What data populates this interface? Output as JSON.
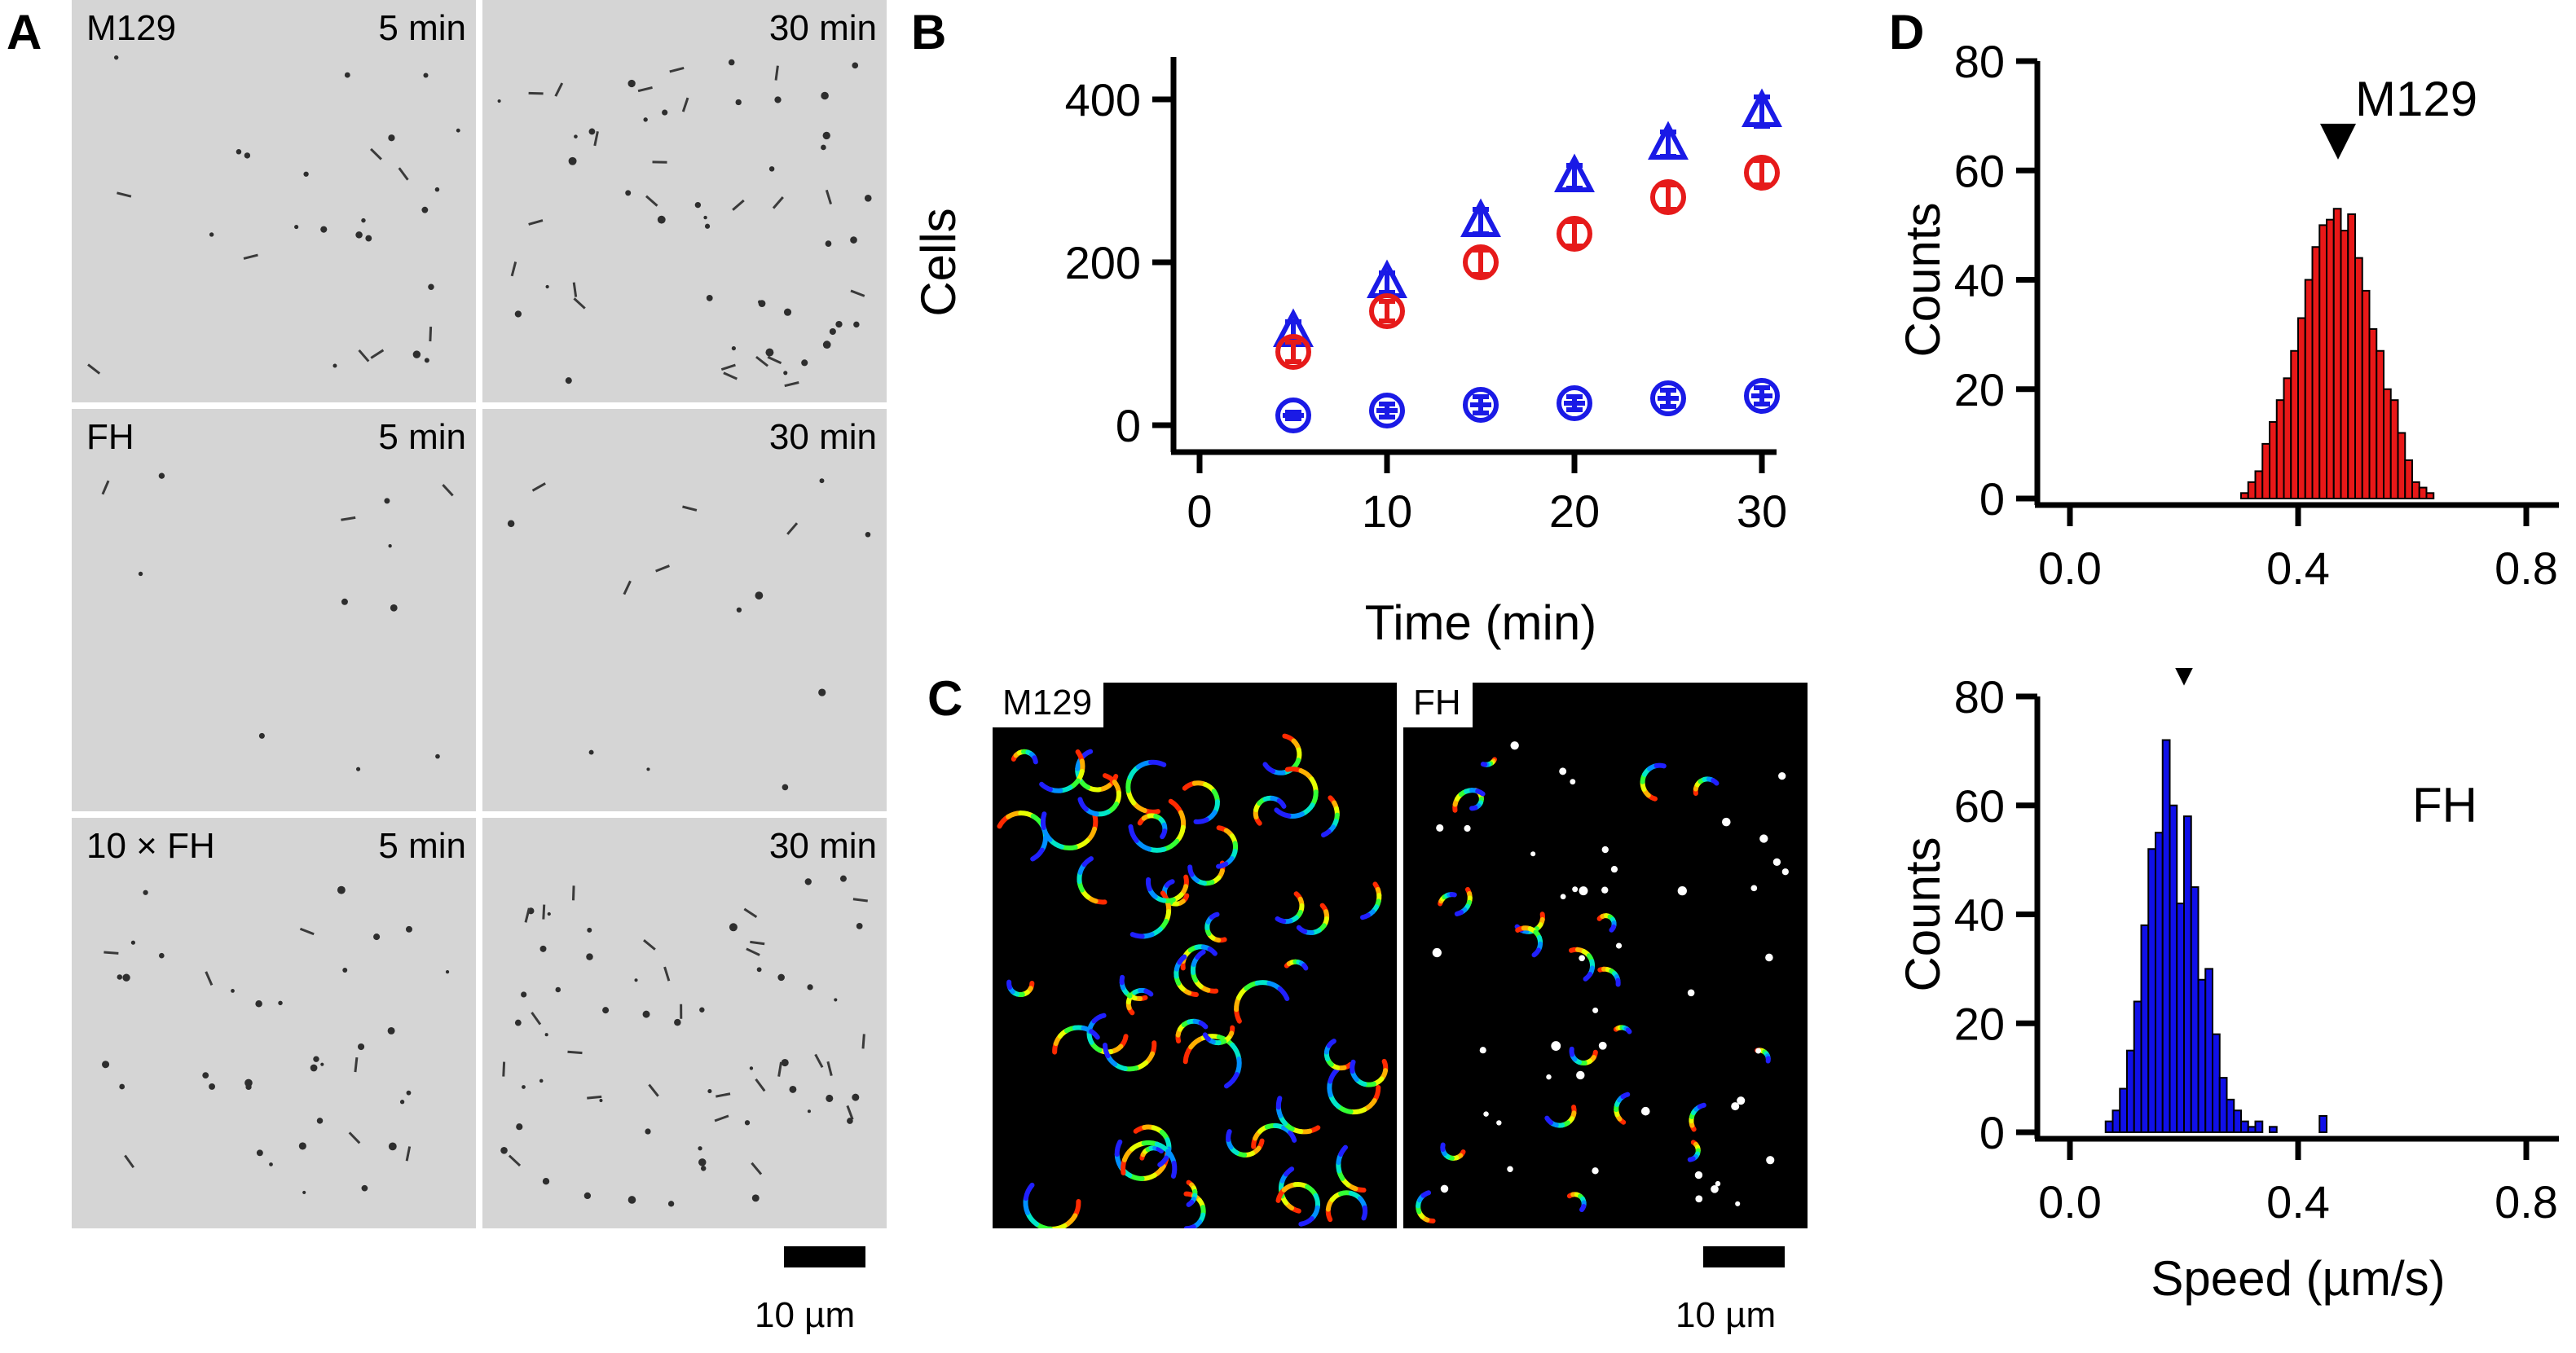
{
  "panel_labels": {
    "a": "A",
    "b": "B",
    "c": "C",
    "d": "D"
  },
  "panel_a": {
    "rows": [
      {
        "label": "M129",
        "early": "5 min",
        "late": "30 min"
      },
      {
        "label": "FH",
        "early": "5 min",
        "late": "30 min"
      },
      {
        "label": "10 × FH",
        "early": "5 min",
        "late": "30 min"
      }
    ],
    "scale_bar": "10 µm"
  },
  "panel_c": {
    "left_label": "M129",
    "right_label": "FH",
    "scale_bar": "10 µm"
  },
  "chart_data": [
    {
      "type": "scatter",
      "xlabel": "Time (min)",
      "ylabel": "Cells",
      "xlim": [
        0,
        30
      ],
      "ylim": [
        0,
        400
      ],
      "xticks": [
        0,
        10,
        20,
        30
      ],
      "yticks": [
        0,
        200,
        400
      ],
      "legend": "none",
      "series": [
        {
          "marker": "triangle",
          "color": "#1a1ae6",
          "x": [
            5,
            10,
            15,
            20,
            25,
            30
          ],
          "y": [
            115,
            175,
            250,
            305,
            345,
            385
          ],
          "err": [
            12,
            12,
            15,
            14,
            15,
            18
          ]
        },
        {
          "marker": "circle",
          "color": "#e61a1a",
          "x": [
            5,
            10,
            15,
            20,
            25,
            30
          ],
          "y": [
            90,
            140,
            200,
            235,
            280,
            310
          ],
          "err": [
            12,
            12,
            15,
            15,
            15,
            15
          ]
        },
        {
          "marker": "circle-bar",
          "color": "#1a1ae6",
          "x": [
            5,
            10,
            15,
            20,
            25,
            30
          ],
          "y": [
            12,
            18,
            25,
            27,
            33,
            36
          ],
          "err": [
            4,
            8,
            10,
            8,
            10,
            10
          ]
        }
      ]
    },
    {
      "type": "bar",
      "title": "M129",
      "xlabel": "",
      "ylabel": "Counts",
      "color": "#e81818",
      "xlim": [
        0.0,
        0.8
      ],
      "ylim": [
        0,
        80
      ],
      "xticks": [
        "0.0",
        "0.4",
        "0.8"
      ],
      "yticks": [
        0,
        20,
        40,
        60,
        80
      ],
      "bin_start": 0.3,
      "bin_width": 0.0125,
      "values": [
        1,
        3,
        5,
        10,
        14,
        18,
        22,
        27,
        33,
        40,
        46,
        50,
        51,
        53,
        49,
        52,
        44,
        38,
        31,
        27,
        20,
        18,
        12,
        7,
        3,
        2,
        1
      ],
      "marker_value": 0.47
    },
    {
      "type": "bar",
      "title": "FH",
      "xlabel": "Speed (µm/s)",
      "ylabel": "Counts",
      "color": "#1010e8",
      "xlim": [
        0.0,
        0.8
      ],
      "ylim": [
        0,
        80
      ],
      "xticks": [
        "0.0",
        "0.4",
        "0.8"
      ],
      "yticks": [
        0,
        20,
        40,
        60,
        80
      ],
      "bin_start": 0.0625,
      "bin_width": 0.0125,
      "values": [
        2,
        4,
        8,
        15,
        24,
        38,
        52,
        55,
        72,
        60,
        42,
        58,
        45,
        28,
        30,
        18,
        10,
        6,
        4,
        2,
        1,
        2,
        0,
        1,
        0,
        0,
        0,
        0,
        0,
        0,
        3
      ],
      "marker_value": 0.2
    }
  ]
}
